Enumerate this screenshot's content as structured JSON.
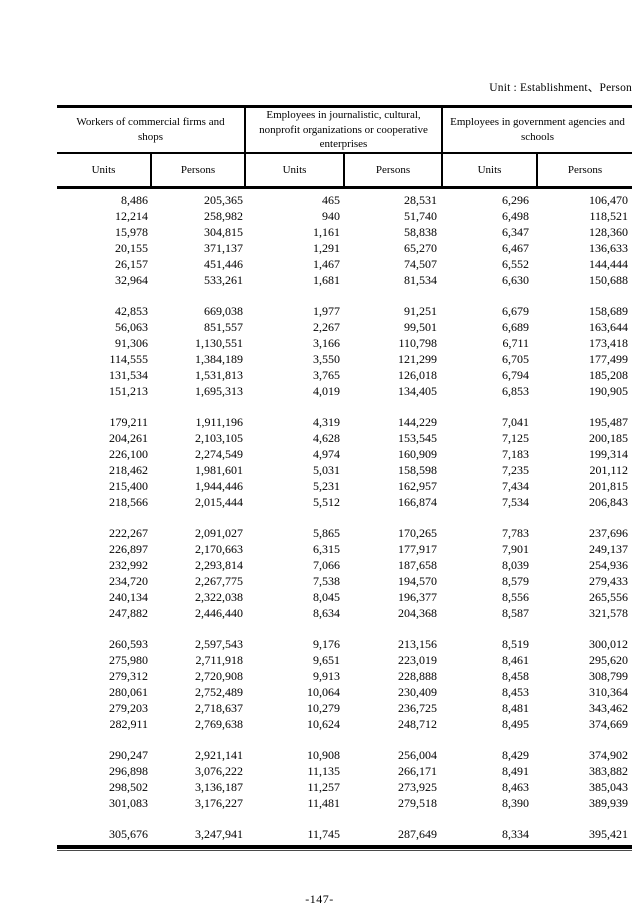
{
  "page": {
    "unit_note": "Unit : Establishment、Person",
    "page_number": "-147-"
  },
  "colors": {
    "background": "#ffffff",
    "text": "#000000",
    "rule": "#000000"
  },
  "table": {
    "groups": [
      {
        "label": "Workers of commercial firms and shops"
      },
      {
        "label": "Employees in journalistic, cultural, nonprofit organizations or cooperative enterprises"
      },
      {
        "label": "Employees in government agencies and schools"
      }
    ],
    "subheaders": [
      "Units",
      "Persons",
      "Units",
      "Persons",
      "Units",
      "Persons"
    ],
    "blocks": [
      [
        [
          "8,486",
          "205,365",
          "465",
          "28,531",
          "6,296",
          "106,470"
        ],
        [
          "12,214",
          "258,982",
          "940",
          "51,740",
          "6,498",
          "118,521"
        ],
        [
          "15,978",
          "304,815",
          "1,161",
          "58,838",
          "6,347",
          "128,360"
        ],
        [
          "20,155",
          "371,137",
          "1,291",
          "65,270",
          "6,467",
          "136,633"
        ],
        [
          "26,157",
          "451,446",
          "1,467",
          "74,507",
          "6,552",
          "144,444"
        ],
        [
          "32,964",
          "533,261",
          "1,681",
          "81,534",
          "6,630",
          "150,688"
        ]
      ],
      [
        [
          "42,853",
          "669,038",
          "1,977",
          "91,251",
          "6,679",
          "158,689"
        ],
        [
          "56,063",
          "851,557",
          "2,267",
          "99,501",
          "6,689",
          "163,644"
        ],
        [
          "91,306",
          "1,130,551",
          "3,166",
          "110,798",
          "6,711",
          "173,418"
        ],
        [
          "114,555",
          "1,384,189",
          "3,550",
          "121,299",
          "6,705",
          "177,499"
        ],
        [
          "131,534",
          "1,531,813",
          "3,765",
          "126,018",
          "6,794",
          "185,208"
        ],
        [
          "151,213",
          "1,695,313",
          "4,019",
          "134,405",
          "6,853",
          "190,905"
        ]
      ],
      [
        [
          "179,211",
          "1,911,196",
          "4,319",
          "144,229",
          "7,041",
          "195,487"
        ],
        [
          "204,261",
          "2,103,105",
          "4,628",
          "153,545",
          "7,125",
          "200,185"
        ],
        [
          "226,100",
          "2,274,549",
          "4,974",
          "160,909",
          "7,183",
          "199,314"
        ],
        [
          "218,462",
          "1,981,601",
          "5,031",
          "158,598",
          "7,235",
          "201,112"
        ],
        [
          "215,400",
          "1,944,446",
          "5,231",
          "162,957",
          "7,434",
          "201,815"
        ],
        [
          "218,566",
          "2,015,444",
          "5,512",
          "166,874",
          "7,534",
          "206,843"
        ]
      ],
      [
        [
          "222,267",
          "2,091,027",
          "5,865",
          "170,265",
          "7,783",
          "237,696"
        ],
        [
          "226,897",
          "2,170,663",
          "6,315",
          "177,917",
          "7,901",
          "249,137"
        ],
        [
          "232,992",
          "2,293,814",
          "7,066",
          "187,658",
          "8,039",
          "254,936"
        ],
        [
          "234,720",
          "2,267,775",
          "7,538",
          "194,570",
          "8,579",
          "279,433"
        ],
        [
          "240,134",
          "2,322,038",
          "8,045",
          "196,377",
          "8,556",
          "265,556"
        ],
        [
          "247,882",
          "2,446,440",
          "8,634",
          "204,368",
          "8,587",
          "321,578"
        ]
      ],
      [
        [
          "260,593",
          "2,597,543",
          "9,176",
          "213,156",
          "8,519",
          "300,012"
        ],
        [
          "275,980",
          "2,711,918",
          "9,651",
          "223,019",
          "8,461",
          "295,620"
        ],
        [
          "279,312",
          "2,720,908",
          "9,913",
          "228,888",
          "8,458",
          "308,799"
        ],
        [
          "280,061",
          "2,752,489",
          "10,064",
          "230,409",
          "8,453",
          "310,364"
        ],
        [
          "279,203",
          "2,718,637",
          "10,279",
          "236,725",
          "8,481",
          "343,462"
        ],
        [
          "282,911",
          "2,769,638",
          "10,624",
          "248,712",
          "8,495",
          "374,669"
        ]
      ],
      [
        [
          "290,247",
          "2,921,141",
          "10,908",
          "256,004",
          "8,429",
          "374,902"
        ],
        [
          "296,898",
          "3,076,222",
          "11,135",
          "266,171",
          "8,491",
          "383,882"
        ],
        [
          "298,502",
          "3,136,187",
          "11,257",
          "273,925",
          "8,463",
          "385,043"
        ],
        [
          "301,083",
          "3,176,227",
          "11,481",
          "279,518",
          "8,390",
          "389,939"
        ]
      ],
      [
        [
          "305,676",
          "3,247,941",
          "11,745",
          "287,649",
          "8,334",
          "395,421"
        ]
      ]
    ]
  }
}
